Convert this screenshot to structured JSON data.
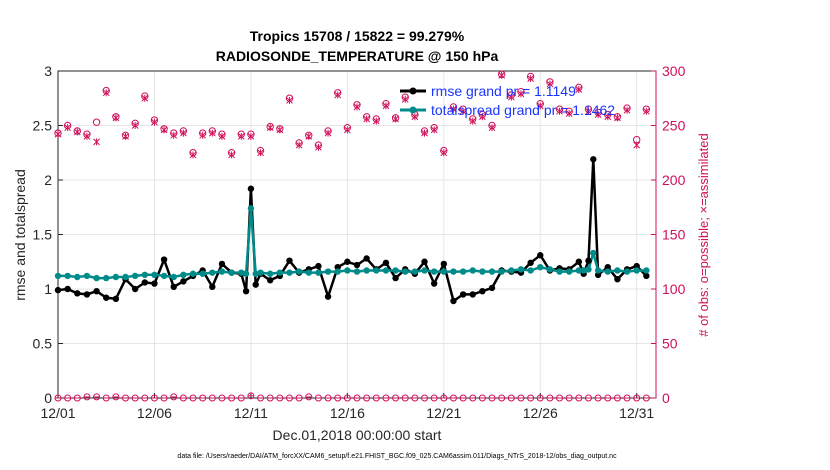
{
  "chart_data": {
    "type": "line",
    "title_line1": "Tropics 15708 / 15822 = 99.279%",
    "title_line2": "RADIOSONDE_TEMPERATURE @ 150 hPa",
    "xlabel": "Dec.01,2018 00:00:00 start",
    "ylabel_left": "rmse and totalspread",
    "ylabel_right": "# of obs: o=possible; ×=assimilated",
    "footer": "data file: /Users/raeder/DAI/ATM_forcXX/CAM6_setup/f.e21.FHIST_BGC.f09_025.CAM6assim.011/Diags_NTrS_2018-12/obs_diag_output.nc",
    "xlim": [
      1,
      32
    ],
    "ylim_left": [
      0,
      3
    ],
    "ylim_right": [
      0,
      300
    ],
    "x_ticks": [
      1,
      6,
      11,
      16,
      21,
      26,
      31
    ],
    "x_tick_labels": [
      "12/01",
      "12/06",
      "12/11",
      "12/16",
      "12/21",
      "12/26",
      "12/31"
    ],
    "y_left_ticks": [
      0,
      0.5,
      1,
      1.5,
      2,
      2.5,
      3
    ],
    "y_left_tick_labels": [
      "0",
      "0.5",
      "1",
      "1.5",
      "2",
      "2.5",
      "3"
    ],
    "y_right_ticks": [
      0,
      50,
      100,
      150,
      200,
      250,
      300
    ],
    "y_right_tick_labels": [
      "0",
      "50",
      "100",
      "150",
      "200",
      "250",
      "300"
    ],
    "legend": [
      "rmse grand pr = 1.1149",
      "totalspread grand pr = 1.1462"
    ],
    "colors": {
      "rmse": "#000000",
      "spread": "#008b8b",
      "obs": "#d0105a",
      "legend_text": "#1a35ff",
      "grid": "#e6e6e6",
      "axis": "#262626"
    },
    "series": [
      {
        "name": "rmse",
        "x": [
          1.0,
          1.5,
          2.0,
          2.5,
          3.0,
          3.5,
          4.0,
          4.5,
          5.0,
          5.5,
          6.0,
          6.5,
          7.0,
          7.5,
          8.0,
          8.5,
          9.0,
          9.5,
          10.0,
          10.5,
          10.75,
          11.0,
          11.25,
          11.5,
          12.0,
          12.5,
          13.0,
          13.5,
          14.0,
          14.5,
          15.0,
          15.5,
          16.0,
          16.5,
          17.0,
          17.5,
          18.0,
          18.5,
          19.0,
          19.5,
          20.0,
          20.5,
          21.0,
          21.5,
          22.0,
          22.5,
          23.0,
          23.5,
          24.0,
          24.5,
          25.0,
          25.5,
          26.0,
          26.5,
          27.0,
          27.5,
          28.0,
          28.25,
          28.5,
          28.75,
          29.0,
          29.5,
          30.0,
          30.5,
          31.0,
          31.5
        ],
        "values": [
          0.99,
          1.0,
          0.96,
          0.95,
          0.98,
          0.92,
          0.91,
          1.09,
          1.0,
          1.06,
          1.05,
          1.27,
          1.02,
          1.07,
          1.12,
          1.17,
          1.02,
          1.23,
          1.15,
          1.14,
          0.98,
          1.92,
          1.04,
          1.14,
          1.08,
          1.12,
          1.26,
          1.15,
          1.18,
          1.21,
          0.93,
          1.2,
          1.25,
          1.22,
          1.28,
          1.18,
          1.24,
          1.1,
          1.18,
          1.14,
          1.25,
          1.05,
          1.23,
          0.89,
          0.95,
          0.95,
          0.98,
          1.01,
          1.17,
          1.16,
          1.15,
          1.24,
          1.31,
          1.17,
          1.19,
          1.18,
          1.25,
          1.14,
          1.26,
          2.19,
          1.13,
          1.2,
          1.09,
          1.18,
          1.21,
          1.12
        ],
        "markers": [
          true,
          true,
          true,
          true,
          true,
          true,
          true,
          true,
          true,
          true,
          true,
          true,
          true,
          true,
          true,
          true,
          true,
          true,
          true,
          true,
          true,
          true,
          true,
          true,
          true,
          true,
          true,
          true,
          true,
          true,
          true,
          true,
          true,
          true,
          true,
          true,
          true,
          true,
          true,
          true,
          true,
          true,
          true,
          true,
          true,
          true,
          true,
          true,
          true,
          true,
          true,
          true,
          true,
          true,
          true,
          true,
          true,
          true,
          true,
          true,
          true,
          true,
          true,
          true,
          true,
          true
        ]
      },
      {
        "name": "totalspread",
        "x": [
          1.0,
          1.5,
          2.0,
          2.5,
          3.0,
          3.5,
          4.0,
          4.5,
          5.0,
          5.5,
          6.0,
          6.5,
          7.0,
          7.5,
          8.0,
          8.5,
          9.0,
          9.5,
          10.0,
          10.5,
          10.75,
          11.0,
          11.25,
          11.5,
          12.0,
          12.5,
          13.0,
          13.5,
          14.0,
          14.5,
          15.0,
          15.5,
          16.0,
          16.5,
          17.0,
          17.5,
          18.0,
          18.5,
          19.0,
          19.5,
          20.0,
          20.5,
          21.0,
          21.5,
          22.0,
          22.5,
          23.0,
          23.5,
          24.0,
          24.5,
          25.0,
          25.5,
          26.0,
          26.5,
          27.0,
          27.5,
          28.0,
          28.25,
          28.5,
          28.75,
          29.0,
          29.5,
          30.0,
          30.5,
          31.0,
          31.5
        ],
        "values": [
          1.12,
          1.12,
          1.11,
          1.12,
          1.1,
          1.1,
          1.11,
          1.11,
          1.12,
          1.13,
          1.13,
          1.12,
          1.11,
          1.13,
          1.14,
          1.14,
          1.15,
          1.16,
          1.15,
          1.15,
          1.14,
          1.74,
          1.14,
          1.15,
          1.14,
          1.15,
          1.15,
          1.16,
          1.15,
          1.15,
          1.16,
          1.16,
          1.17,
          1.16,
          1.17,
          1.17,
          1.17,
          1.17,
          1.16,
          1.16,
          1.17,
          1.16,
          1.16,
          1.16,
          1.16,
          1.17,
          1.16,
          1.16,
          1.16,
          1.17,
          1.18,
          1.17,
          1.2,
          1.18,
          1.16,
          1.16,
          1.17,
          1.17,
          1.18,
          1.33,
          1.17,
          1.16,
          1.17,
          1.16,
          1.17,
          1.17
        ],
        "markers": [
          true,
          true,
          true,
          true,
          true,
          true,
          true,
          true,
          true,
          true,
          true,
          true,
          true,
          true,
          true,
          true,
          true,
          true,
          true,
          true,
          true,
          true,
          true,
          true,
          true,
          true,
          true,
          true,
          true,
          true,
          true,
          true,
          true,
          true,
          true,
          true,
          true,
          true,
          true,
          true,
          true,
          true,
          true,
          true,
          true,
          true,
          true,
          true,
          true,
          true,
          true,
          true,
          true,
          true,
          true,
          true,
          true,
          true,
          true,
          true,
          true,
          true,
          true,
          true,
          true,
          true
        ]
      },
      {
        "name": "obs_possible",
        "x": [
          1.0,
          1.5,
          2.0,
          2.5,
          3.0,
          3.5,
          4.0,
          4.5,
          5.0,
          5.5,
          6.0,
          6.5,
          7.0,
          7.5,
          8.0,
          8.5,
          9.0,
          9.5,
          10.0,
          10.5,
          11.0,
          11.5,
          12.0,
          12.5,
          13.0,
          13.5,
          14.0,
          14.5,
          15.0,
          15.5,
          16.0,
          16.5,
          17.0,
          17.5,
          18.0,
          18.5,
          19.0,
          19.5,
          20.0,
          20.5,
          21.0,
          21.5,
          22.0,
          22.5,
          23.0,
          23.5,
          24.0,
          24.5,
          25.0,
          25.5,
          26.0,
          26.5,
          27.0,
          27.5,
          28.0,
          28.5,
          29.0,
          29.5,
          30.0,
          30.5,
          31.0,
          31.5
        ],
        "values": [
          243,
          250,
          245,
          242,
          253,
          282,
          258,
          241,
          252,
          277,
          255,
          247,
          243,
          245,
          225,
          243,
          245,
          242,
          225,
          242,
          242,
          227,
          249,
          247,
          275,
          234,
          241,
          232,
          245,
          280,
          248,
          269,
          258,
          256,
          270,
          257,
          276,
          260,
          245,
          248,
          227,
          267,
          265,
          256,
          260,
          250,
          297,
          278,
          281,
          295,
          270,
          290,
          265,
          263,
          285,
          265,
          262,
          260,
          258,
          266,
          237,
          265
        ],
        "markers": [
          true,
          true,
          true,
          true,
          true,
          true,
          true,
          true,
          true,
          true,
          true,
          true,
          true,
          true,
          true,
          true,
          true,
          true,
          true,
          true,
          true,
          true,
          true,
          true,
          true,
          true,
          true,
          true,
          true,
          true,
          true,
          true,
          true,
          true,
          true,
          true,
          true,
          true,
          true,
          true,
          true,
          true,
          true,
          true,
          true,
          true,
          true,
          true,
          true,
          true,
          true,
          true,
          true,
          true,
          true,
          true,
          true,
          true,
          true,
          true,
          true,
          true
        ]
      },
      {
        "name": "obs_assimilated",
        "x": [
          1.0,
          1.5,
          2.0,
          2.5,
          3.0,
          3.5,
          4.0,
          4.5,
          5.0,
          5.5,
          6.0,
          6.5,
          7.0,
          7.5,
          8.0,
          8.5,
          9.0,
          9.5,
          10.0,
          10.5,
          11.0,
          11.5,
          12.0,
          12.5,
          13.0,
          13.5,
          14.0,
          14.5,
          15.0,
          15.5,
          16.0,
          16.5,
          17.0,
          17.5,
          18.0,
          18.5,
          19.0,
          19.5,
          20.0,
          20.5,
          21.0,
          21.5,
          22.0,
          22.5,
          23.0,
          23.5,
          24.0,
          24.5,
          25.0,
          25.5,
          26.0,
          26.5,
          27.0,
          27.5,
          28.0,
          28.5,
          29.0,
          29.5,
          30.0,
          30.5,
          31.0,
          31.5
        ],
        "values": [
          242,
          248,
          244,
          240,
          235,
          280,
          257,
          240,
          250,
          275,
          253,
          246,
          241,
          243,
          223,
          241,
          243,
          240,
          223,
          240,
          240,
          225,
          248,
          246,
          273,
          232,
          240,
          230,
          243,
          278,
          246,
          267,
          256,
          254,
          268,
          256,
          274,
          258,
          243,
          246,
          225,
          265,
          263,
          254,
          258,
          248,
          296,
          276,
          279,
          293,
          268,
          288,
          263,
          261,
          283,
          263,
          260,
          258,
          257,
          264,
          232,
          263
        ],
        "markers": [
          true,
          true,
          true,
          true,
          true,
          true,
          true,
          true,
          true,
          true,
          true,
          true,
          true,
          true,
          true,
          true,
          true,
          true,
          true,
          true,
          true,
          true,
          true,
          true,
          true,
          true,
          true,
          true,
          true,
          true,
          true,
          true,
          true,
          true,
          true,
          true,
          true,
          true,
          true,
          true,
          true,
          true,
          true,
          true,
          true,
          true,
          true,
          true,
          true,
          true,
          true,
          true,
          true,
          true,
          true,
          true,
          true,
          true,
          true,
          true,
          true,
          true
        ]
      },
      {
        "name": "obs_zero_rejected",
        "x": [
          1.0,
          1.5,
          2.0,
          2.5,
          3.0,
          3.5,
          4.0,
          4.5,
          5.0,
          5.5,
          6.0,
          6.5,
          7.0,
          7.5,
          8.0,
          8.5,
          9.0,
          9.5,
          10.0,
          10.5,
          11.0,
          11.5,
          12.0,
          12.5,
          13.0,
          13.5,
          14.0,
          14.5,
          15.0,
          15.5,
          16.0,
          16.5,
          17.0,
          17.5,
          18.0,
          18.5,
          19.0,
          19.5,
          20.0,
          20.5,
          21.0,
          21.5,
          22.0,
          22.5,
          23.0,
          23.5,
          24.0,
          24.5,
          25.0,
          25.5,
          26.0,
          26.5,
          27.0,
          27.5,
          28.0,
          28.5,
          29.0,
          29.5,
          30.0,
          30.5,
          31.0,
          31.5
        ],
        "values": [
          0,
          0,
          0,
          1,
          1,
          0,
          1,
          0,
          0,
          0,
          0,
          0,
          1,
          0,
          0,
          0,
          0,
          0,
          0,
          0,
          2,
          0,
          0,
          0,
          0,
          0,
          1,
          0,
          0,
          0,
          0,
          0,
          0,
          0,
          0,
          0,
          0,
          0,
          0,
          0,
          0,
          0,
          0,
          0,
          0,
          0,
          0,
          0,
          0,
          0,
          0,
          0,
          0,
          0,
          0,
          0,
          0,
          0,
          0,
          0,
          0,
          0
        ],
        "markers": [
          true,
          true,
          true,
          true,
          true,
          true,
          true,
          true,
          true,
          true,
          true,
          true,
          true,
          true,
          true,
          true,
          true,
          true,
          true,
          true,
          true,
          true,
          true,
          true,
          true,
          true,
          true,
          true,
          true,
          true,
          true,
          true,
          true,
          true,
          true,
          true,
          true,
          true,
          true,
          true,
          true,
          true,
          true,
          true,
          true,
          true,
          true,
          true,
          true,
          true,
          true,
          true,
          true,
          true,
          true,
          true,
          true,
          true,
          true,
          true,
          true,
          true
        ]
      }
    ]
  }
}
